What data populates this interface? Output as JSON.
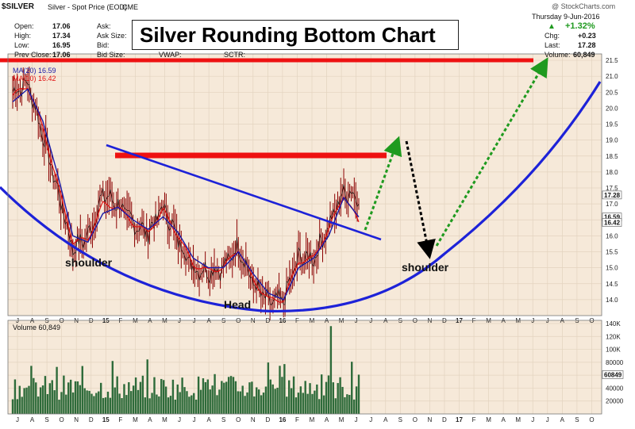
{
  "header": {
    "symbol": "$SILVER",
    "name": "Silver - Spot Price (EOD)",
    "exchange": "CME",
    "brand": "@ StockCharts.com",
    "date": "Thursday  9-Jun-2016",
    "open_label": "Open:",
    "open": "17.06",
    "high_label": "High:",
    "high": "17.34",
    "low_label": "Low:",
    "low": "16.95",
    "prev_label": "Prev Close:",
    "prev": "17.06",
    "ask_label": "Ask:",
    "asksize_label": "Ask Size:",
    "bid_label": "Bid:",
    "bidsize_label": "Bid Size:",
    "vwap_label": "VWAP:",
    "sctr_label": "SCTR:",
    "change_pct": "+1.32%",
    "chg_label": "Chg:",
    "chg": "+0.23",
    "last_label": "Last:",
    "last": "17.28",
    "volume_label": "Volume:",
    "volume": "60,849"
  },
  "legend": {
    "ma20": "MA(20) 16.59",
    "ma10": "MA(10) 16.42",
    "volume": "Volume 60,849"
  },
  "annotations": {
    "title": "Silver Rounding Bottom Chart",
    "left_shoulder": "shoulder",
    "head": "Head",
    "right_shoulder": "shoulder"
  },
  "colors": {
    "candles": "#8b0000",
    "ma20": "#1a1aa6",
    "ma10": "#e01010",
    "volume": "#2e6b3a",
    "panel_bg": "#f6e9d9",
    "trendline": "#1d22d8",
    "resistance": "#ee1111",
    "arrow_up": "#1f9a1f",
    "arrow_down": "#000000",
    "change_up": "#1f9a1f"
  },
  "chart_data": {
    "type": "line",
    "title": "",
    "ylim": [
      13.5,
      21.7
    ],
    "price_ticks": [
      14.0,
      14.5,
      15.0,
      15.5,
      16.0,
      16.5,
      17.0,
      17.5,
      18.0,
      18.5,
      19.0,
      19.5,
      20.0,
      20.5,
      21.0,
      21.5
    ],
    "price_tick_labels": [
      "14.0",
      "14.5",
      "15.0",
      "15.5",
      "16.0",
      "16.5",
      "17.0",
      "17.5",
      "18.0",
      "18.5",
      "19.0",
      "19.5",
      "20.0",
      "20.5",
      "21.0",
      "21.5"
    ],
    "price_badges": [
      {
        "label": "17.28",
        "value": 17.28
      },
      {
        "label": "16.59",
        "value": 16.59
      },
      {
        "label": "16.42",
        "value": 16.42
      }
    ],
    "volume_ylim": [
      0,
      140000
    ],
    "volume_ticks": [
      20000,
      40000,
      60000,
      80000,
      100000,
      120000,
      140000
    ],
    "volume_tick_labels": [
      "20000",
      "40000",
      "60000",
      "80000",
      "100K",
      "120K",
      "140K"
    ],
    "volume_badge": {
      "label": "60849",
      "value": 60849
    },
    "x_tick_labels": [
      "J",
      "A",
      "S",
      "O",
      "N",
      "D",
      "15",
      "F",
      "M",
      "A",
      "M",
      "J",
      "J",
      "A",
      "S",
      "O",
      "N",
      "D",
      "16",
      "F",
      "M",
      "A",
      "M",
      "J",
      "J",
      "A",
      "S",
      "O",
      "N",
      "D",
      "17",
      "F",
      "M",
      "A",
      "M",
      "J",
      "J",
      "A",
      "S",
      "O"
    ],
    "bold_x_labels": [
      "15",
      "16",
      "17"
    ],
    "series": [
      {
        "name": "$SILVER",
        "x": [
          "2014-07",
          "2014-08",
          "2014-09",
          "2014-10",
          "2014-11",
          "2014-12",
          "2015-01",
          "2015-02",
          "2015-03",
          "2015-04",
          "2015-05",
          "2015-06",
          "2015-07",
          "2015-08",
          "2015-09",
          "2015-10",
          "2015-11",
          "2015-12",
          "2016-01",
          "2016-02",
          "2016-03",
          "2016-04",
          "2016-05",
          "2016-06"
        ],
        "values": [
          20.5,
          20.8,
          19.2,
          17.4,
          15.6,
          16.0,
          17.3,
          17.0,
          16.4,
          16.1,
          16.9,
          15.9,
          15.0,
          14.9,
          15.0,
          15.7,
          14.5,
          13.9,
          14.0,
          15.3,
          15.3,
          16.3,
          17.4,
          17.28
        ]
      },
      {
        "name": "MA(20)",
        "values": [
          20.2,
          20.6,
          19.6,
          17.9,
          16.0,
          15.8,
          16.7,
          16.9,
          16.5,
          16.2,
          16.6,
          16.1,
          15.3,
          15.0,
          15.0,
          15.5,
          14.8,
          14.2,
          14.0,
          15.0,
          15.3,
          16.0,
          17.2,
          16.59
        ]
      },
      {
        "name": "MA(10)",
        "values": [
          20.4,
          20.7,
          19.4,
          17.6,
          15.8,
          15.9,
          17.0,
          16.9,
          16.4,
          16.1,
          16.8,
          16.0,
          15.1,
          14.9,
          15.0,
          15.6,
          14.6,
          14.0,
          14.0,
          15.2,
          15.3,
          16.2,
          17.3,
          16.42
        ]
      }
    ],
    "volume_series": {
      "name": "Volume",
      "last": 60849,
      "max_spike": 136000
    }
  }
}
